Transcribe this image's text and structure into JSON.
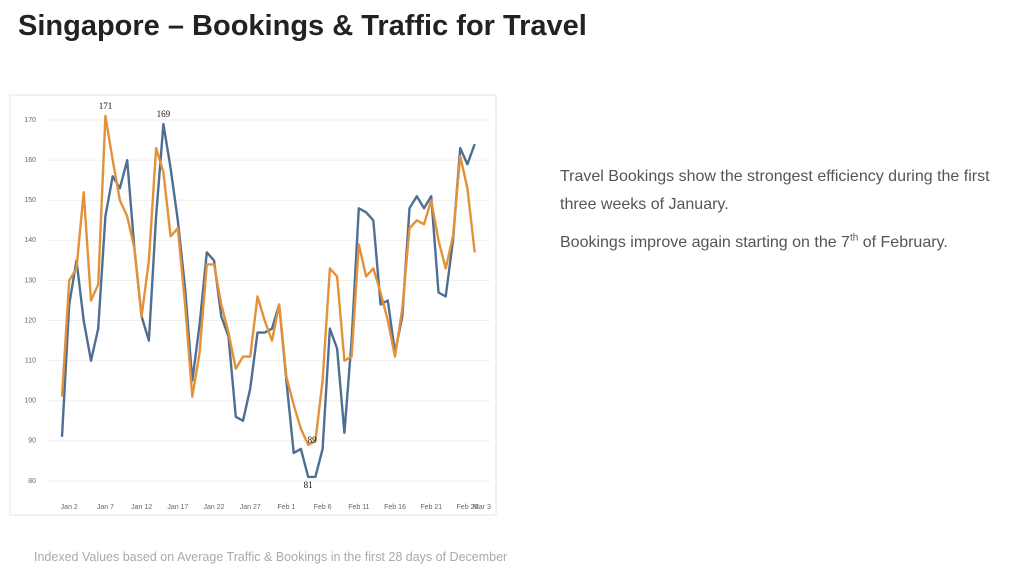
{
  "chart_data": {
    "type": "line",
    "title": "Singapore – Bookings & Traffic for Travel",
    "categories": [
      null,
      "Jan 2",
      null,
      null,
      null,
      null,
      "Jan 7",
      null,
      null,
      null,
      null,
      "Jan 12",
      null,
      null,
      null,
      null,
      "Jan 17",
      null,
      null,
      null,
      null,
      "Jan 22",
      null,
      null,
      null,
      null,
      "Jan 27",
      null,
      null,
      null,
      null,
      "Feb 1",
      null,
      null,
      null,
      null,
      "Feb 6",
      null,
      null,
      null,
      null,
      "Feb 11",
      null,
      null,
      null,
      null,
      "Feb 16",
      null,
      null,
      null,
      null,
      "Feb 21",
      null,
      null,
      null,
      null,
      "Feb 26",
      null,
      "Mar 3"
    ],
    "series": [
      {
        "color": "#4e6f93",
        "values": [
          91,
          124,
          135,
          120,
          110,
          118,
          146,
          156,
          153,
          160,
          138,
          121,
          115,
          146,
          169,
          158,
          145,
          128,
          105,
          119,
          137,
          135,
          121,
          116,
          96,
          95,
          103,
          117,
          117,
          118,
          124,
          105,
          87,
          88,
          81,
          81,
          88,
          118,
          113,
          92,
          115,
          148,
          147,
          145,
          124,
          125,
          112,
          121,
          148,
          151,
          148,
          151,
          127,
          126,
          140,
          163,
          159,
          164,
          null
        ]
      },
      {
        "color": "#e3923a",
        "values": [
          101,
          130,
          133,
          152,
          125,
          129,
          171,
          160,
          150,
          146,
          138,
          121,
          135,
          163,
          157,
          141,
          143,
          124,
          101,
          112,
          134,
          134,
          124,
          117,
          108,
          111,
          111,
          126,
          120,
          115,
          124,
          106,
          99,
          93,
          89,
          90,
          105,
          133,
          131,
          110,
          111,
          139,
          131,
          133,
          127,
          120,
          111,
          123,
          143,
          145,
          144,
          150,
          140,
          133,
          141,
          161,
          153,
          137,
          null
        ]
      }
    ],
    "annotations": [
      {
        "text": "171",
        "series": 1,
        "index": 6
      },
      {
        "text": "169",
        "series": 0,
        "index": 14
      },
      {
        "text": "89",
        "series": 1,
        "index": 34
      },
      {
        "text": "81",
        "series": 0,
        "index": 34
      }
    ],
    "ylim": [
      76,
      175
    ],
    "yticks": [
      80,
      90,
      100,
      110,
      120,
      130,
      140,
      150,
      160,
      170
    ],
    "grid": true,
    "commentary": [
      {
        "text": "Travel Bookings show the strongest efficiency during the first three weeks of January."
      },
      {
        "text": "Bookings improve again starting on the 7",
        "sup": "th",
        "tail": " of February."
      }
    ],
    "footnote": "Indexed Values based on Average Traffic & Bookings in the first 28 days of December"
  }
}
